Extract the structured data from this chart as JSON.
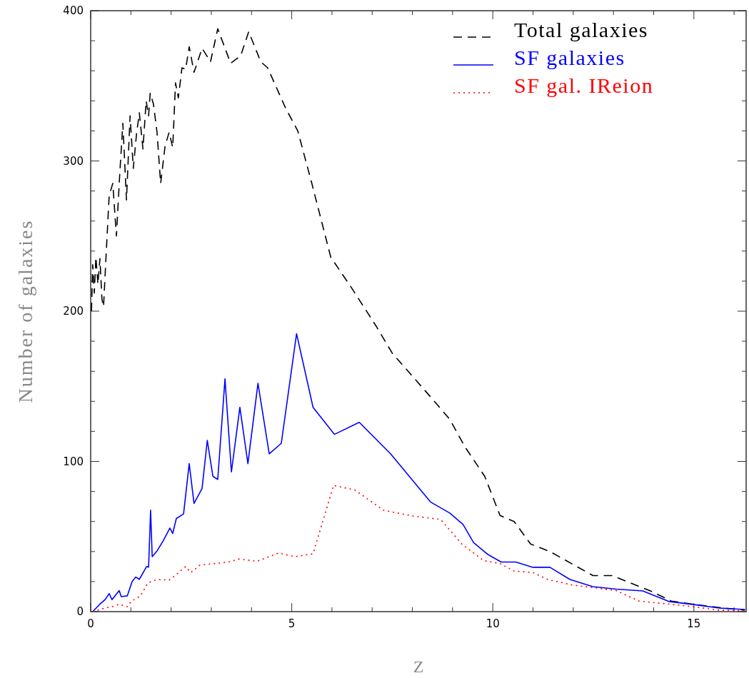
{
  "chart_data": {
    "type": "line",
    "xlabel": "Z",
    "ylabel": "Number of galaxies",
    "xlim": [
      0,
      16.3
    ],
    "ylim": [
      0,
      400
    ],
    "xticks": [
      0,
      {
        "value": 1,
        "label": null
      },
      {
        "value": 2,
        "label": null
      },
      {
        "value": 3,
        "label": null
      },
      {
        "value": 4,
        "label": null
      },
      5,
      {
        "value": 6,
        "label": null
      },
      {
        "value": 7,
        "label": null
      },
      {
        "value": 8,
        "label": null
      },
      {
        "value": 9,
        "label": null
      },
      10,
      {
        "value": 11,
        "label": null
      },
      {
        "value": 12,
        "label": null
      },
      {
        "value": 13,
        "label": null
      },
      {
        "value": 14,
        "label": null
      },
      15,
      {
        "value": 16,
        "label": null
      }
    ],
    "yticks": [
      0,
      {
        "value": 20,
        "label": null
      },
      {
        "value": 40,
        "label": null
      },
      {
        "value": 60,
        "label": null
      },
      {
        "value": 80,
        "label": null
      },
      100,
      {
        "value": 120,
        "label": null
      },
      {
        "value": 140,
        "label": null
      },
      {
        "value": 160,
        "label": null
      },
      {
        "value": 180,
        "label": null
      },
      200,
      {
        "value": 220,
        "label": null
      },
      {
        "value": 240,
        "label": null
      },
      {
        "value": 260,
        "label": null
      },
      {
        "value": 280,
        "label": null
      },
      300,
      {
        "value": 320,
        "label": null
      },
      {
        "value": 340,
        "label": null
      },
      {
        "value": 360,
        "label": null
      },
      {
        "value": 380,
        "label": null
      },
      400
    ],
    "grid": false,
    "legend": "top right",
    "marker": "none",
    "series": [
      {
        "name": "Total galaxies",
        "color": "#000000",
        "line_style": "dashed",
        "x": [
          0.02,
          0.05,
          0.09,
          0.13,
          0.18,
          0.23,
          0.28,
          0.32,
          0.37,
          0.46,
          0.55,
          0.64,
          0.72,
          0.8,
          0.89,
          0.98,
          1.06,
          1.14,
          1.21,
          1.3,
          1.38,
          1.44,
          1.48,
          1.56,
          1.65,
          1.74,
          1.85,
          1.95,
          2.04,
          2.06,
          2.11,
          2.18,
          2.27,
          2.36,
          2.45,
          2.57,
          2.77,
          2.98,
          3.16,
          3.48,
          3.73,
          3.93,
          4.23,
          4.4,
          4.85,
          5.15,
          5.5,
          5.97,
          6.5,
          7.1,
          7.5,
          8.45,
          8.93,
          9.3,
          9.8,
          10.18,
          10.53,
          10.94,
          11.42,
          12.49,
          12.97,
          13.9,
          14.44,
          14.97,
          15.74,
          16.27
        ],
        "values": [
          200,
          231,
          212,
          236,
          218,
          235,
          208,
          203,
          230,
          277,
          285,
          250,
          290,
          325,
          274,
          330,
          295,
          318,
          332,
          308,
          340,
          330,
          345,
          338,
          319,
          285,
          310,
          319,
          309,
          321,
          352,
          342,
          362,
          361,
          376,
          359,
          375,
          366,
          388,
          365,
          370,
          386,
          366,
          362,
          335,
          320,
          285,
          236,
          215,
          190,
          172,
          143,
          128,
          110,
          90,
          64,
          60,
          45,
          40,
          24,
          24,
          14,
          7,
          5,
          2.4,
          1
        ]
      },
      {
        "name": "SF galaxies",
        "color": "#0000ff",
        "line_style": "solid",
        "x": [
          0.05,
          0.23,
          0.36,
          0.46,
          0.53,
          0.71,
          0.76,
          0.91,
          1.03,
          1.12,
          1.21,
          1.39,
          1.44,
          1.49,
          1.53,
          1.65,
          1.8,
          1.97,
          2.04,
          2.13,
          2.31,
          2.45,
          2.57,
          2.77,
          2.9,
          3.04,
          3.16,
          3.34,
          3.5,
          3.71,
          3.91,
          4.16,
          4.44,
          4.74,
          5.12,
          5.53,
          6.06,
          6.68,
          7.46,
          8.45,
          8.93,
          9.26,
          9.52,
          9.88,
          10.21,
          10.57,
          11.0,
          11.42,
          11.92,
          12.49,
          13.07,
          13.73,
          14.39,
          14.97,
          15.63,
          16.27
        ],
        "values": [
          0,
          5,
          8,
          12,
          8,
          14,
          10,
          10.5,
          20,
          23,
          21.5,
          30,
          29.6,
          67.5,
          36.6,
          40.4,
          47,
          55.6,
          52,
          62,
          65,
          98.5,
          72,
          82,
          114,
          90,
          88,
          155,
          93,
          136,
          98.5,
          152,
          105,
          112,
          185,
          136,
          118,
          126,
          105,
          73,
          65.6,
          58,
          46,
          38,
          33,
          33,
          29.5,
          29.5,
          21.4,
          16.6,
          15,
          13.8,
          6.7,
          4.8,
          2.4,
          1.4
        ]
      },
      {
        "name": "SF gal. IReion",
        "color": "#ff0000",
        "line_style": "dotted",
        "x": [
          0.05,
          0.36,
          0.53,
          0.71,
          0.91,
          1.0,
          1.24,
          1.42,
          1.65,
          1.95,
          2.13,
          2.36,
          2.49,
          2.72,
          3.07,
          3.43,
          3.69,
          4.14,
          4.67,
          5.08,
          5.53,
          6.04,
          6.57,
          7.28,
          7.99,
          8.7,
          9.24,
          9.77,
          10.18,
          10.53,
          11.0,
          11.37,
          12.0,
          12.49,
          13.07,
          13.64,
          14.39,
          14.97,
          15.63,
          16.27
        ],
        "values": [
          0,
          2.4,
          3.3,
          4.8,
          3.3,
          6.7,
          10.5,
          19,
          21.4,
          21,
          24.7,
          30,
          26,
          31,
          32,
          33,
          35,
          33.5,
          39,
          36.6,
          38.5,
          84,
          81,
          67.5,
          63.7,
          61.4,
          44.7,
          34,
          32,
          27,
          26,
          21.4,
          17.6,
          16,
          14,
          7,
          5,
          3.3,
          1,
          0.5
        ]
      }
    ]
  }
}
